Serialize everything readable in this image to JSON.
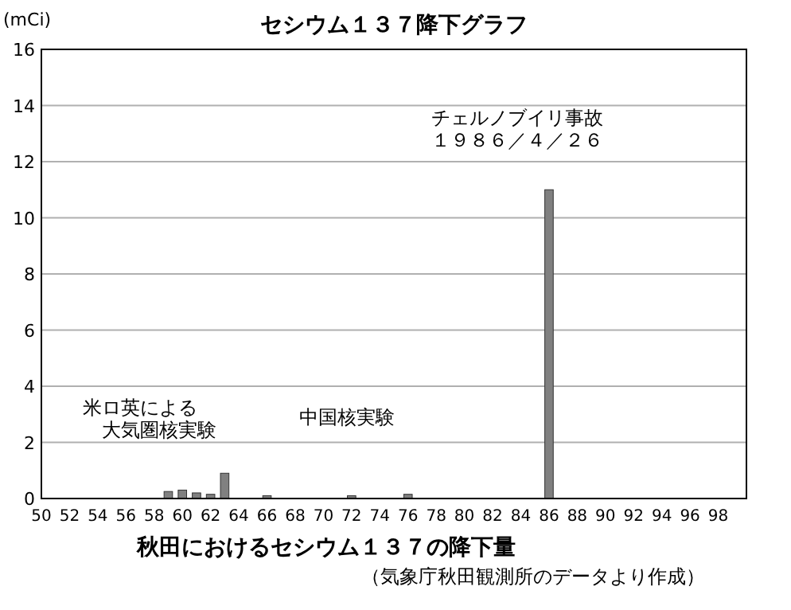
{
  "chart_data": {
    "type": "bar",
    "title": "セシウム１３７降下グラフ",
    "xlabel": "秋田におけるセシウム１３７の降下量",
    "ylabel": "(mCi)",
    "x": [
      59,
      60,
      61,
      62,
      63,
      66,
      72,
      76,
      86
    ],
    "values": [
      0.25,
      0.3,
      0.2,
      0.15,
      0.9,
      0.1,
      0.1,
      0.15,
      11
    ],
    "color": "#808080",
    "xlim": [
      50,
      100
    ],
    "xticks": [
      50,
      52,
      54,
      56,
      58,
      60,
      62,
      64,
      66,
      68,
      70,
      72,
      74,
      76,
      78,
      80,
      82,
      84,
      86,
      88,
      90,
      92,
      94,
      96,
      98
    ],
    "ylim": [
      0,
      16
    ],
    "yticks": [
      0,
      2,
      4,
      6,
      8,
      10,
      12,
      14,
      16
    ],
    "grid": "y",
    "annotations": [
      "チェルノブイリ事故",
      "１９８６／４／２６",
      "米ロ英による",
      "大気圏核実験",
      "中国核実験",
      "（気象庁秋田観測所のデータより作成）"
    ]
  }
}
